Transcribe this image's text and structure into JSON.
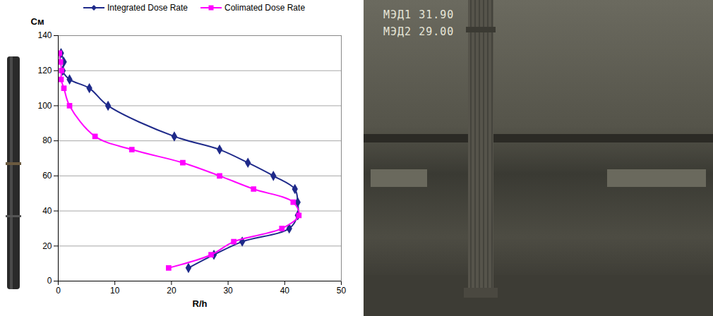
{
  "chart_data": {
    "type": "line",
    "x_label": "R/h",
    "y_label": "См",
    "y": [
      130,
      125,
      120,
      115,
      110,
      100,
      82.5,
      75,
      67.5,
      60,
      52.5,
      45,
      37.5,
      30,
      22.5,
      15,
      7.5
    ],
    "series": [
      {
        "name": "Integrated Dose Rate",
        "color": "#1f2a8a",
        "marker": "diamond",
        "values": [
          0.5,
          1,
          0.8,
          2,
          5.5,
          8.8,
          20.5,
          28.5,
          33.5,
          38,
          41.8,
          42.3,
          42.3,
          40.8,
          32.5,
          27.5,
          23
        ]
      },
      {
        "name": "Colimated Dose Rate",
        "color": "#ff00ff",
        "marker": "square",
        "values": [
          0.2,
          0.4,
          0.6,
          0.5,
          1,
          2,
          6.5,
          13,
          22,
          28.5,
          34.5,
          41.5,
          42.5,
          39.5,
          31,
          27,
          19.5
        ]
      }
    ],
    "xlim": [
      0,
      50
    ],
    "xticks": [
      0,
      10,
      20,
      30,
      40,
      50
    ],
    "ylim": [
      0,
      140
    ],
    "yticks": [
      0,
      20,
      40,
      60,
      80,
      100,
      120,
      140
    ],
    "grid": true,
    "legend": "top"
  },
  "photo": {
    "overlay": [
      "МЭД1 31.90",
      "МЭД2 29.00"
    ]
  }
}
